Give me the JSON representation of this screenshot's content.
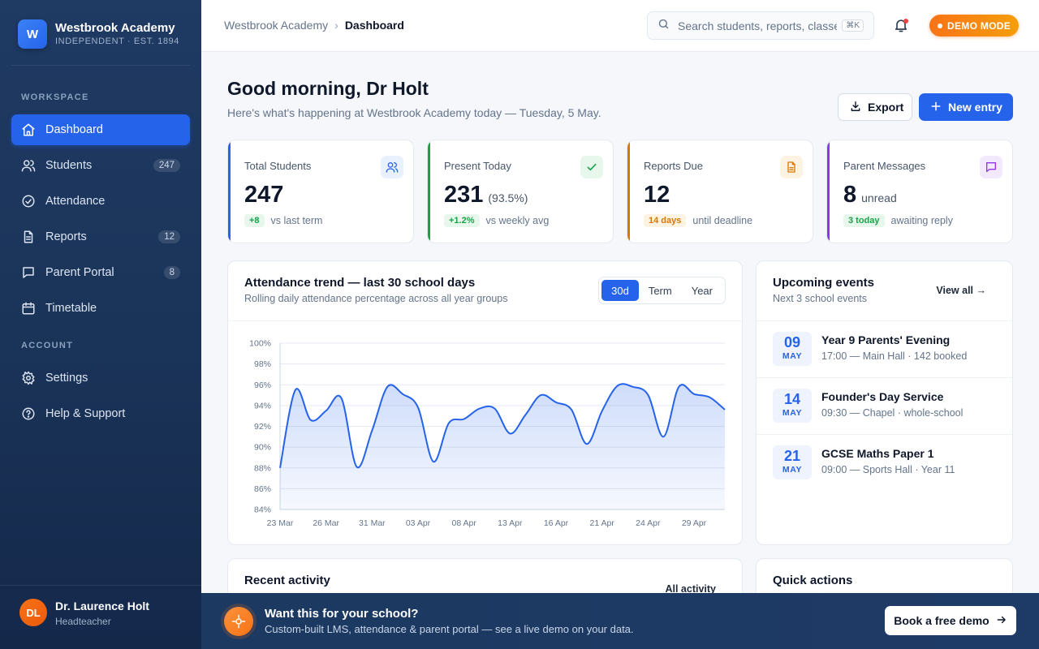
{
  "brand": {
    "initial": "W",
    "name": "Westbrook Academy",
    "sub": "INDEPENDENT · EST. 1894"
  },
  "sidebar": {
    "section_workspace": "WORKSPACE",
    "section_account": "ACCOUNT",
    "items": [
      {
        "label": "Dashboard",
        "icon": "home-icon",
        "active": true
      },
      {
        "label": "Students",
        "icon": "users-icon",
        "badge": "247"
      },
      {
        "label": "Attendance",
        "icon": "check-circle-icon"
      },
      {
        "label": "Reports",
        "icon": "document-icon",
        "badge": "12"
      },
      {
        "label": "Parent Portal",
        "icon": "message-icon",
        "badge": "8"
      },
      {
        "label": "Timetable",
        "icon": "calendar-icon"
      }
    ],
    "account_items": [
      {
        "label": "Settings",
        "icon": "gear-icon"
      },
      {
        "label": "Help & Support",
        "icon": "help-icon"
      }
    ]
  },
  "user": {
    "initials": "DL",
    "name": "Dr. Laurence Holt",
    "role": "Headteacher"
  },
  "topbar": {
    "crumb_root": "Westbrook Academy",
    "crumb_current": "Dashboard",
    "search_placeholder": "Search students, reports, classes…",
    "search_shortcut": "⌘K",
    "demo_label": "DEMO MODE"
  },
  "header": {
    "greeting": "Good morning, Dr Holt",
    "subtitle": "Here's what's happening at Westbrook Academy today — Tuesday, 5 May.",
    "export_label": "Export",
    "new_label": "New entry"
  },
  "stats": [
    {
      "label": "Total Students",
      "value": "247",
      "extra": "",
      "chip": "+8",
      "foot": "vs last term",
      "color": "#2563eb"
    },
    {
      "label": "Present Today",
      "value": "231",
      "extra": "(93.5%)",
      "chip": "+1.2%",
      "foot": "vs weekly avg",
      "color": "#16a34a"
    },
    {
      "label": "Reports Due",
      "value": "12",
      "extra": "",
      "chip": "14 days",
      "foot": "until deadline",
      "color": "#d97706"
    },
    {
      "label": "Parent Messages",
      "value": "8",
      "extra": "unread",
      "chip": "3 today",
      "foot": "awaiting reply",
      "color": "#9333ea"
    }
  ],
  "attendance": {
    "title": "Attendance trend — last 30 school days",
    "subtitle": "Rolling daily attendance percentage across all year groups",
    "ranges": [
      "30d",
      "Term",
      "Year"
    ],
    "active_range": "30d"
  },
  "chart_data": {
    "type": "area",
    "title": "Attendance trend — last 30 school days",
    "ylim": [
      84,
      100
    ],
    "y_ticks": [
      "100%",
      "98%",
      "96%",
      "94%",
      "92%",
      "90%",
      "88%",
      "86%",
      "84%"
    ],
    "x_ticks": [
      "23 Mar",
      "26 Mar",
      "31 Mar",
      "03 Apr",
      "08 Apr",
      "13 Apr",
      "16 Apr",
      "21 Apr",
      "24 Apr",
      "29 Apr"
    ],
    "values": [
      88.0,
      95.5,
      92.6,
      93.5,
      94.7,
      88.1,
      91.6,
      95.8,
      95.1,
      93.8,
      88.6,
      92.3,
      92.7,
      93.7,
      93.7,
      91.3,
      93.1,
      95.0,
      94.3,
      93.6,
      90.3,
      93.5,
      95.9,
      95.8,
      95.0,
      91.0,
      95.8,
      95.1,
      94.8,
      93.6
    ],
    "grid": true,
    "color": "#2563eb"
  },
  "events": {
    "title": "Upcoming events",
    "subtitle": "Next 3 school events",
    "view_all": "View all →",
    "items": [
      {
        "day": "09",
        "month": "MAY",
        "title": "Year 9 Parents' Evening",
        "meta": "17:00 — Main Hall · 142 booked"
      },
      {
        "day": "14",
        "month": "MAY",
        "title": "Founder's Day Service",
        "meta": "09:30 — Chapel · whole-school"
      },
      {
        "day": "21",
        "month": "MAY",
        "title": "GCSE Maths Paper 1",
        "meta": "09:00 — Sports Hall · Year 11"
      }
    ]
  },
  "activity": {
    "title": "Recent activity",
    "link": "All activity"
  },
  "quick_actions": {
    "title": "Quick actions"
  },
  "banner": {
    "title": "Want this for your school?",
    "subtitle": "Custom-built LMS, attendance & parent portal — see a live demo on your data.",
    "button": "Book a free demo"
  }
}
